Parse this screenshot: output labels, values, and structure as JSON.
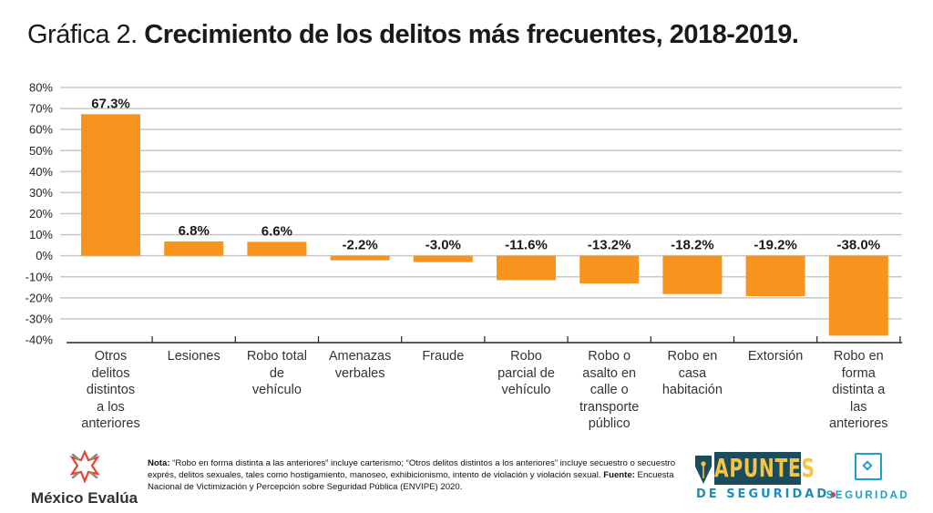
{
  "title": {
    "prefix": "Gráfica 2.",
    "main": "Crecimiento de los delitos más frecuentes, 2018-2019."
  },
  "colors": {
    "bar": "#f7941d",
    "grid": "#c8c8c8",
    "axis": "#222222",
    "accent_blue": "#1a9fc9",
    "apuntes_bg": "#1d4c5c",
    "apuntes_text": "#f4c542",
    "logo_red": "#e8383d"
  },
  "chart_data": {
    "type": "bar",
    "title": "Crecimiento de los delitos más frecuentes, 2018-2019.",
    "xlabel": "",
    "ylabel": "",
    "ylim": [
      -40,
      80
    ],
    "yticks": [
      80,
      70,
      60,
      50,
      40,
      30,
      20,
      10,
      0,
      -10,
      -20,
      -30,
      -40
    ],
    "ytick_labels": [
      "80%",
      "70%",
      "60%",
      "50%",
      "40%",
      "30%",
      "20%",
      "10%",
      "0%",
      "-10%",
      "-20%",
      "-30%",
      "-40%"
    ],
    "grid": true,
    "legend": "none",
    "categories": [
      "Otros delitos distintos a los anteriores",
      "Lesiones",
      "Robo total de vehículo",
      "Amenazas verbales",
      "Fraude",
      "Robo parcial de vehículo",
      "Robo o asalto en calle o transporte público",
      "Robo en casa habitación",
      "Extorsión",
      "Robo en forma distinta a las anteriores"
    ],
    "category_lines": [
      [
        "Otros",
        "delitos",
        "distintos",
        "a los",
        "anteriores"
      ],
      [
        "Lesiones"
      ],
      [
        "Robo total",
        "de",
        "vehículo"
      ],
      [
        "Amenazas",
        "verbales"
      ],
      [
        "Fraude"
      ],
      [
        "Robo",
        "parcial de",
        "vehículo"
      ],
      [
        "Robo o",
        "asalto en",
        "calle o",
        "transporte",
        "público"
      ],
      [
        "Robo en",
        "casa",
        "habitación"
      ],
      [
        "Extorsión"
      ],
      [
        "Robo en",
        "forma",
        "distinta a",
        "las",
        "anteriores"
      ]
    ],
    "values": [
      67.3,
      6.8,
      6.6,
      -2.2,
      -3.0,
      -11.6,
      -13.2,
      -18.2,
      -19.2,
      -38.0
    ],
    "data_labels": [
      "67.3%",
      "6.8%",
      "6.6%",
      "-2.2%",
      "-3.0%",
      "-11.6%",
      "-13.2%",
      "-18.2%",
      "-19.2%",
      "-38.0%"
    ]
  },
  "footer": {
    "note_label": "Nota:",
    "note_text": " “Robo en forma distinta a las anteriores” incluye carterismo; “Otros delitos distintos a los anteriores” incluye secuestro o secuestro exprés, delitos sexuales, tales como hostigamiento, manoseo, exhibicionismo, intento de violación y violación sexual. ",
    "source_label": "Fuente:",
    "source_text": " Encuesta Nacional de Victimización y Percepción sobre Seguridad Pública (ENVIPE) 2020.",
    "logos": {
      "mexico_evalua": "México Evalúa",
      "apuntes_main": "APUNTES",
      "apuntes_sub": "DE SEGURIDAD",
      "seguridad": "SEGURIDAD"
    }
  }
}
